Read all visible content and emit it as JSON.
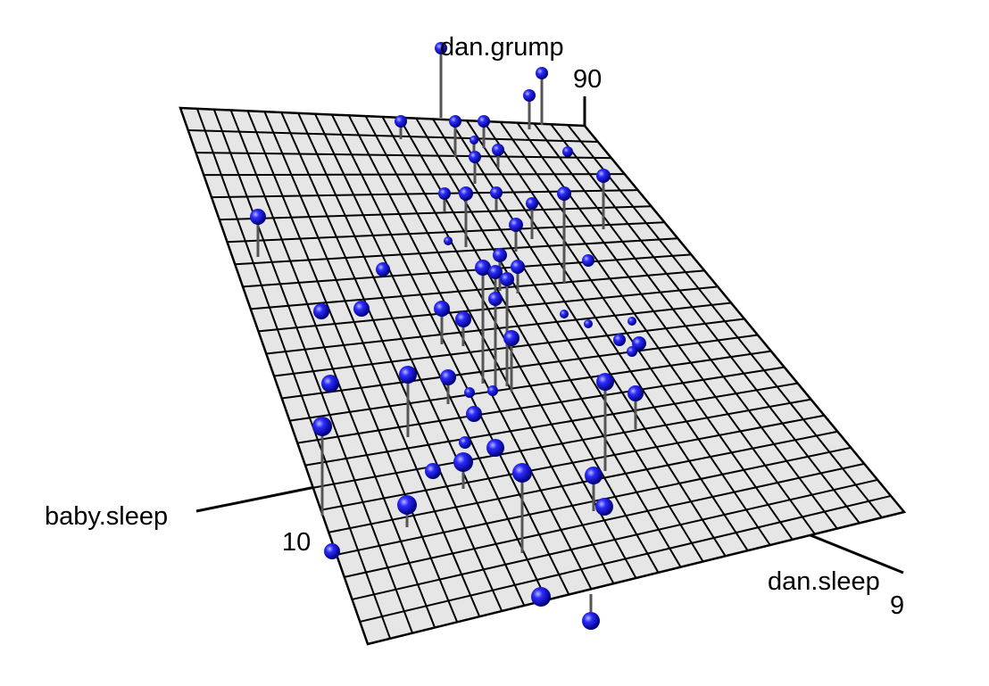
{
  "chart_data": {
    "type": "scatter",
    "subtype": "3d-scatter-with-regression-plane",
    "title": "",
    "axes": {
      "x": {
        "label": "dan.sleep",
        "tick_label": "9"
      },
      "y": {
        "label": "baby.sleep",
        "tick_label": "10"
      },
      "z": {
        "label": "dan.grump",
        "tick_label": "90"
      }
    },
    "plane": {
      "fill": "#e6e6e6",
      "grid": "#000000",
      "grid_divisions": 24
    },
    "point_color": "#1a1ad6",
    "residual_line_color": "#555555",
    "grid": true,
    "legend": "none"
  }
}
